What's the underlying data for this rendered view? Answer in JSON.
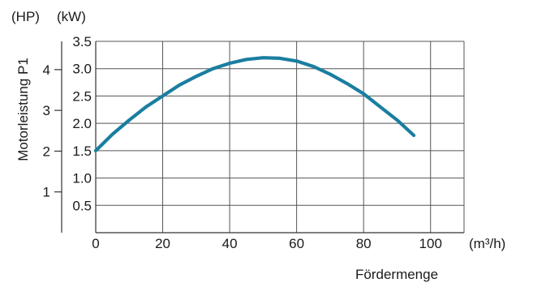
{
  "chart_data": {
    "type": "line",
    "xlabel": "Fördermenge",
    "x_unit": "(m³/h)",
    "ylabel": "Motorleistung P1",
    "y_unit": "(kW)",
    "y2_unit": "(HP)",
    "xlim": [
      0,
      110
    ],
    "ylim": [
      0,
      3.5
    ],
    "x_ticks": [
      0,
      20,
      40,
      60,
      80,
      100
    ],
    "x_tick_labels": [
      "0",
      "20",
      "40",
      "60",
      "80",
      "100"
    ],
    "y_ticks": [
      0.5,
      1.0,
      1.5,
      2.0,
      2.5,
      3.0,
      3.5
    ],
    "y_tick_labels": [
      "0.5",
      "1.0",
      "1.5",
      "2.0",
      "2.5",
      "3.0",
      "3.5"
    ],
    "hp_ticks": [
      1,
      2,
      3,
      4
    ],
    "hp_tick_labels": [
      "1",
      "2",
      "3",
      "4"
    ],
    "grid": true,
    "series": [
      {
        "color": "#1a7ea0",
        "x": [
          0,
          5,
          10,
          15,
          20,
          25,
          30,
          35,
          40,
          45,
          50,
          55,
          60,
          65,
          70,
          75,
          80,
          85,
          90,
          95
        ],
        "y": [
          1.5,
          1.8,
          2.06,
          2.3,
          2.5,
          2.7,
          2.86,
          3.0,
          3.1,
          3.17,
          3.2,
          3.19,
          3.14,
          3.04,
          2.9,
          2.73,
          2.54,
          2.3,
          2.06,
          1.78
        ]
      }
    ]
  }
}
